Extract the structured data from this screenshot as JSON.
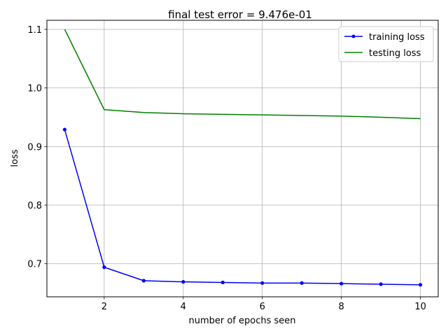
{
  "chart_data": {
    "type": "line",
    "title": "final test error = 9.476e-01",
    "xlabel": "number of epochs seen",
    "ylabel": "loss",
    "x": [
      1,
      2,
      3,
      4,
      5,
      6,
      7,
      8,
      9,
      10
    ],
    "xlim": [
      0.55,
      10.45
    ],
    "ylim": [
      0.6435,
      1.1155
    ],
    "xticks": [
      2,
      4,
      6,
      8,
      10
    ],
    "yticks": [
      0.7,
      0.8,
      0.9,
      1.0,
      1.1
    ],
    "xtick_labels": [
      "2",
      "4",
      "6",
      "8",
      "10"
    ],
    "ytick_labels": [
      "0.7",
      "0.8",
      "0.9",
      "1.0",
      "1.1"
    ],
    "grid": true,
    "legend_position": "top-right",
    "series": [
      {
        "name": "training loss",
        "color": "#0000ff",
        "marker": "dot",
        "values": [
          0.929,
          0.694,
          0.671,
          0.669,
          0.668,
          0.667,
          0.667,
          0.666,
          0.665,
          0.664
        ]
      },
      {
        "name": "testing loss",
        "color": "#008000",
        "marker": "none",
        "values": [
          1.1,
          0.963,
          0.958,
          0.956,
          0.955,
          0.954,
          0.953,
          0.952,
          0.95,
          0.9476
        ]
      }
    ]
  }
}
